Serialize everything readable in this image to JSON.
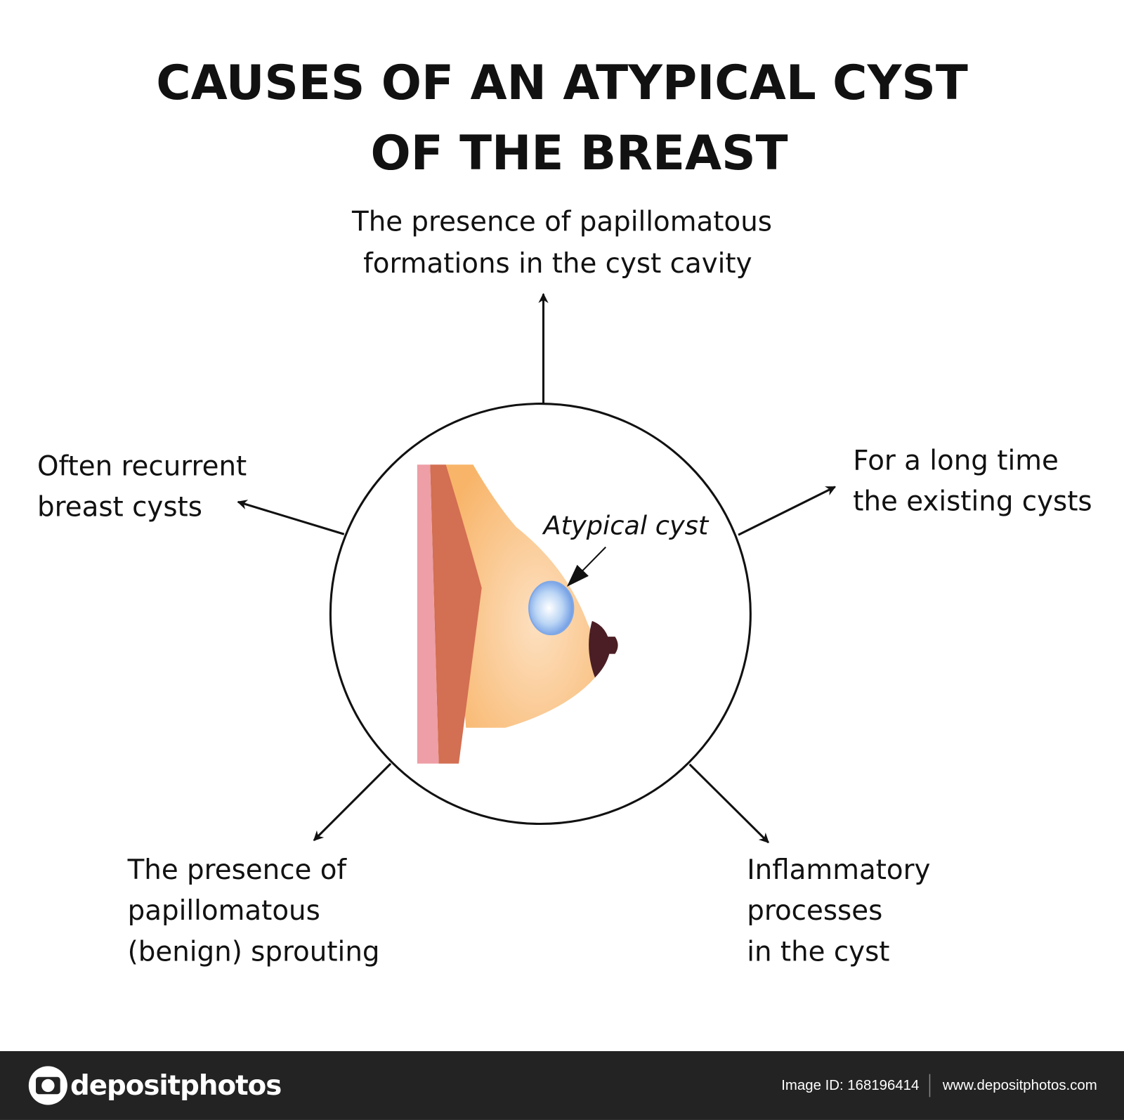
{
  "title": [
    "CAUSES OF AN ATYPICAL CYST",
    "OF THE BREAST"
  ],
  "center_label": "Atypical cyst",
  "causes": [
    {
      "lines": [
        "The presence of papillomatous",
        "formations in the cyst cavity"
      ]
    },
    {
      "lines": [
        "For a long time",
        "the existing cysts"
      ]
    },
    {
      "lines": [
        "Inflammatory",
        "processes",
        "in the cyst"
      ]
    },
    {
      "lines": [
        "The presence of",
        "papillomatous",
        "(benign) sprouting"
      ]
    },
    {
      "lines": [
        "Often recurrent",
        "breast cysts"
      ]
    }
  ],
  "footer": {
    "brand": "depositphotos",
    "image_id": "Image ID: 168196414",
    "url": "www.depositphotos.com"
  }
}
